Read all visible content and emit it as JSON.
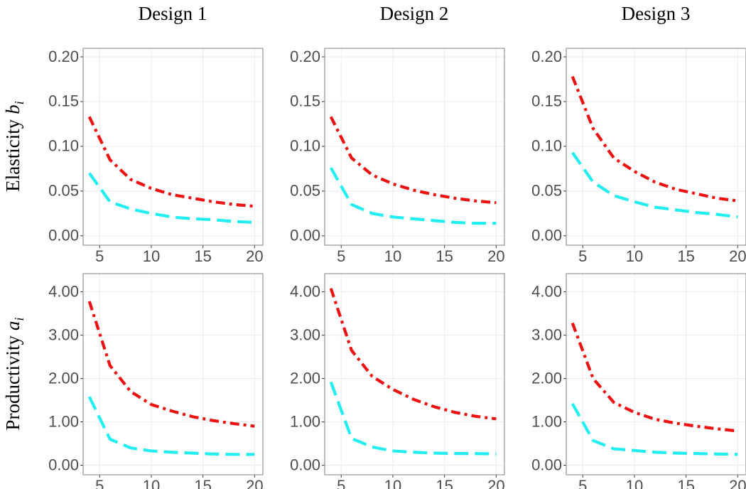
{
  "column_titles": [
    "Design 1",
    "Design 2",
    "Design 3"
  ],
  "row_labels": [
    {
      "text": "Elasticity",
      "symbol": "b",
      "subscript": "i"
    },
    {
      "text": "Productivity",
      "symbol": "a",
      "subscript": "i"
    }
  ],
  "chart_data": [
    {
      "type": "line",
      "x": [
        4,
        6,
        8,
        10,
        12,
        14,
        16,
        18,
        20
      ],
      "xlim": [
        3.4,
        20.8
      ],
      "xticks": [
        5,
        10,
        15,
        20
      ],
      "ylim": [
        -0.0105,
        0.2095
      ],
      "yticks": [
        {
          "value": 0,
          "label": "0.00"
        },
        {
          "value": 0.05,
          "label": "0.05"
        },
        {
          "value": 0.1,
          "label": "0.10"
        },
        {
          "value": 0.15,
          "label": "0.15"
        },
        {
          "value": 0.2,
          "label": "0.20"
        }
      ],
      "grid": true,
      "series": [
        {
          "color": "#ee1111",
          "linestyle": "dashdot",
          "values": [
            0.133,
            0.085,
            0.063,
            0.053,
            0.046,
            0.042,
            0.038,
            0.035,
            0.033
          ]
        },
        {
          "color": "#22eef2",
          "linestyle": "dashed",
          "values": [
            0.07,
            0.038,
            0.03,
            0.025,
            0.021,
            0.019,
            0.018,
            0.016,
            0.015
          ]
        }
      ]
    },
    {
      "type": "line",
      "x": [
        4,
        6,
        8,
        10,
        12,
        14,
        16,
        18,
        20
      ],
      "xlim": [
        3.4,
        20.8
      ],
      "xticks": [
        5,
        10,
        15,
        20
      ],
      "ylim": [
        -0.0105,
        0.2095
      ],
      "yticks": [
        {
          "value": 0,
          "label": "0.00"
        },
        {
          "value": 0.05,
          "label": "0.05"
        },
        {
          "value": 0.1,
          "label": "0.10"
        },
        {
          "value": 0.15,
          "label": "0.15"
        },
        {
          "value": 0.2,
          "label": "0.20"
        }
      ],
      "grid": true,
      "series": [
        {
          "color": "#ee1111",
          "linestyle": "dashdot",
          "values": [
            0.133,
            0.087,
            0.068,
            0.058,
            0.051,
            0.046,
            0.042,
            0.039,
            0.037
          ]
        },
        {
          "color": "#22eef2",
          "linestyle": "dashed",
          "values": [
            0.076,
            0.035,
            0.025,
            0.021,
            0.019,
            0.017,
            0.015,
            0.014,
            0.014
          ]
        }
      ]
    },
    {
      "type": "line",
      "x": [
        4,
        6,
        8,
        10,
        12,
        14,
        16,
        18,
        20
      ],
      "xlim": [
        3.4,
        20.8
      ],
      "xticks": [
        5,
        10,
        15,
        20
      ],
      "ylim": [
        -0.0105,
        0.2095
      ],
      "yticks": [
        {
          "value": 0,
          "label": "0.00"
        },
        {
          "value": 0.05,
          "label": "0.05"
        },
        {
          "value": 0.1,
          "label": "0.10"
        },
        {
          "value": 0.15,
          "label": "0.15"
        },
        {
          "value": 0.2,
          "label": "0.20"
        }
      ],
      "grid": true,
      "series": [
        {
          "color": "#ee1111",
          "linestyle": "dashdot",
          "values": [
            0.178,
            0.12,
            0.087,
            0.072,
            0.06,
            0.052,
            0.047,
            0.042,
            0.039
          ]
        },
        {
          "color": "#22eef2",
          "linestyle": "dashed",
          "values": [
            0.093,
            0.06,
            0.045,
            0.038,
            0.032,
            0.029,
            0.026,
            0.024,
            0.021
          ]
        }
      ]
    },
    {
      "type": "line",
      "x": [
        4,
        6,
        8,
        10,
        12,
        14,
        16,
        18,
        20
      ],
      "xlim": [
        3.4,
        20.8
      ],
      "xticks": [
        5,
        10,
        15,
        20
      ],
      "ylim": [
        -0.22,
        4.42
      ],
      "yticks": [
        {
          "value": 0,
          "label": "0.00"
        },
        {
          "value": 1,
          "label": "1.00"
        },
        {
          "value": 2,
          "label": "2.00"
        },
        {
          "value": 3,
          "label": "3.00"
        },
        {
          "value": 4,
          "label": "4.00"
        }
      ],
      "grid": true,
      "series": [
        {
          "color": "#ee1111",
          "linestyle": "dashdot",
          "values": [
            3.78,
            2.3,
            1.7,
            1.4,
            1.25,
            1.12,
            1.03,
            0.96,
            0.9
          ]
        },
        {
          "color": "#22eef2",
          "linestyle": "dashed",
          "values": [
            1.58,
            0.6,
            0.4,
            0.33,
            0.3,
            0.28,
            0.26,
            0.25,
            0.25
          ]
        }
      ]
    },
    {
      "type": "line",
      "x": [
        4,
        6,
        8,
        10,
        12,
        14,
        16,
        18,
        20
      ],
      "xlim": [
        3.4,
        20.8
      ],
      "xticks": [
        5,
        10,
        15,
        20
      ],
      "ylim": [
        -0.22,
        4.42
      ],
      "yticks": [
        {
          "value": 0,
          "label": "0.00"
        },
        {
          "value": 1,
          "label": "1.00"
        },
        {
          "value": 2,
          "label": "2.00"
        },
        {
          "value": 3,
          "label": "3.00"
        },
        {
          "value": 4,
          "label": "4.00"
        }
      ],
      "grid": true,
      "series": [
        {
          "color": "#ee1111",
          "linestyle": "dashdot",
          "values": [
            4.08,
            2.65,
            2.05,
            1.75,
            1.52,
            1.35,
            1.22,
            1.13,
            1.07
          ]
        },
        {
          "color": "#22eef2",
          "linestyle": "dashed",
          "values": [
            1.92,
            0.62,
            0.42,
            0.33,
            0.3,
            0.28,
            0.27,
            0.27,
            0.26
          ]
        }
      ]
    },
    {
      "type": "line",
      "x": [
        4,
        6,
        8,
        10,
        12,
        14,
        16,
        18,
        20
      ],
      "xlim": [
        3.4,
        20.8
      ],
      "xticks": [
        5,
        10,
        15,
        20
      ],
      "ylim": [
        -0.22,
        4.42
      ],
      "yticks": [
        {
          "value": 0,
          "label": "0.00"
        },
        {
          "value": 1,
          "label": "1.00"
        },
        {
          "value": 2,
          "label": "2.00"
        },
        {
          "value": 3,
          "label": "3.00"
        },
        {
          "value": 4,
          "label": "4.00"
        }
      ],
      "grid": true,
      "series": [
        {
          "color": "#ee1111",
          "linestyle": "dashdot",
          "values": [
            3.28,
            2.0,
            1.45,
            1.22,
            1.06,
            0.97,
            0.9,
            0.84,
            0.79
          ]
        },
        {
          "color": "#22eef2",
          "linestyle": "dashed",
          "values": [
            1.42,
            0.57,
            0.38,
            0.34,
            0.3,
            0.28,
            0.27,
            0.26,
            0.25
          ]
        }
      ]
    }
  ]
}
